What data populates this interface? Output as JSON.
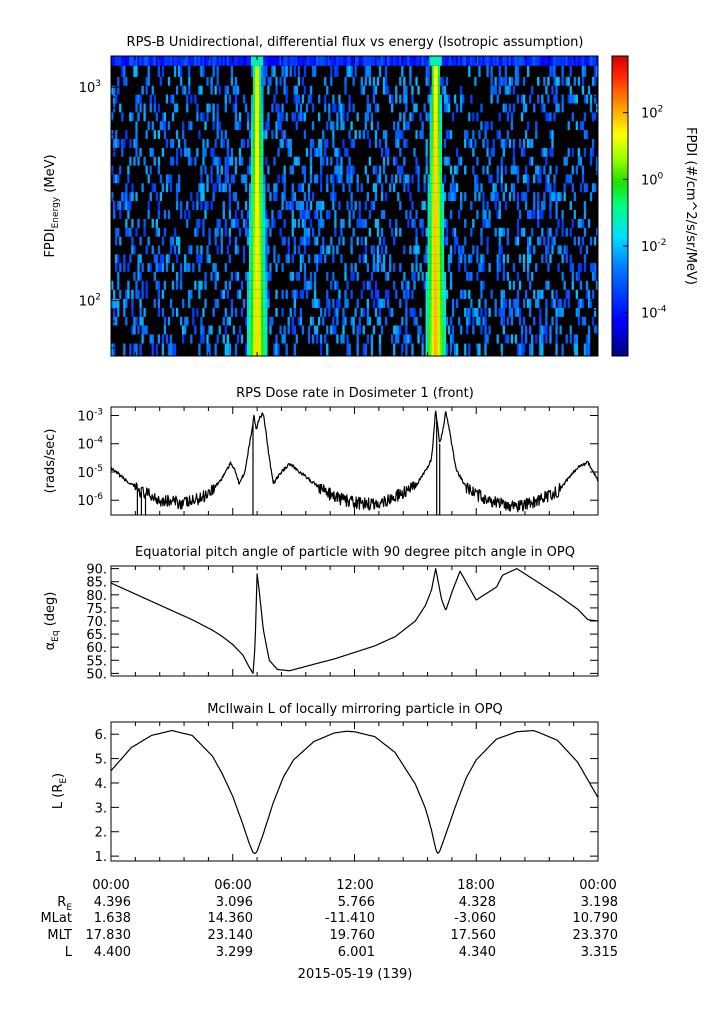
{
  "chart_data": [
    {
      "type": "heatmap",
      "title": "RPS-B  Unidirectional, differential flux vs energy (Isotropic assumption)",
      "ylabel_main": "FPDI",
      "ylabel_sub": "Energy",
      "ylabel_unit": "(MeV)",
      "yscale": "log",
      "ylim": [
        55,
        1400
      ],
      "yticks": [
        {
          "v": 100,
          "m": "10",
          "e": "2"
        },
        {
          "v": 1000,
          "m": "10",
          "e": "3"
        }
      ],
      "xlim_hours": [
        0,
        24
      ],
      "energy_rows": [
        60,
        66,
        73,
        80,
        88,
        97,
        107,
        118,
        130,
        143,
        157,
        173,
        190,
        209,
        230,
        253,
        279,
        307,
        338,
        372,
        409,
        450,
        495,
        545,
        600,
        660,
        726,
        799,
        880,
        968,
        1065,
        1172
      ],
      "peak_bands": [
        {
          "center_hours": 7.2,
          "peak_log_flux": 2.0
        },
        {
          "center_hours": 16.0,
          "peak_log_flux": 2.3
        }
      ],
      "colorbar": {
        "label": "FPDI (#/cm^2/s/sr/MeV)",
        "scale": "log",
        "range_log": [
          -5.3,
          3.7
        ],
        "ticks": [
          {
            "v": 2,
            "m": "10",
            "e": "2"
          },
          {
            "v": 0,
            "m": "10",
            "e": "0"
          },
          {
            "v": -2,
            "m": "10",
            "e": "-2"
          },
          {
            "v": -4,
            "m": "10",
            "e": "-4"
          }
        ]
      }
    },
    {
      "type": "line",
      "title": "RPS  Dose rate in Dosimeter 1 (front)",
      "ylabel": "(rads/sec)",
      "yscale": "log",
      "ylim": [
        3e-07,
        0.002
      ],
      "yticks": [
        {
          "v": 0.001,
          "m": "10",
          "e": "-3"
        },
        {
          "v": 0.0001,
          "m": "10",
          "e": "-4"
        },
        {
          "v": 1e-05,
          "m": "10",
          "e": "-5"
        },
        {
          "v": 1e-06,
          "m": "10",
          "e": "-6"
        }
      ],
      "x_hours": [
        0,
        0.5,
        1,
        1.5,
        2,
        2.5,
        3,
        3.5,
        4,
        4.5,
        5,
        5.4,
        5.7,
        5.9,
        6.1,
        6.3,
        6.6,
        6.9,
        7.05,
        7.15,
        7.3,
        7.5,
        7.6,
        7.8,
        8.0,
        8.4,
        8.8,
        9.3,
        10,
        11,
        12,
        13,
        14,
        15,
        15.5,
        15.8,
        16.0,
        16.2,
        16.35,
        16.5,
        16.7,
        17.0,
        17.5,
        18,
        19,
        20,
        21,
        22,
        23,
        23.5,
        24
      ],
      "y_values": [
        1.3e-05,
        7e-06,
        3.5e-06,
        2e-06,
        1.4e-06,
        1e-06,
        9e-07,
        8e-07,
        9e-07,
        1.3e-06,
        2.5e-06,
        5e-06,
        1.2e-05,
        2e-05,
        1.3e-05,
        4e-06,
        1e-05,
        0.0002,
        0.001,
        0.0003,
        0.0008,
        0.0012,
        0.0004,
        3e-05,
        4e-06,
        1e-05,
        2e-05,
        1e-05,
        4e-06,
        1.3e-06,
        8e-07,
        7e-07,
        1.3e-06,
        3e-06,
        1.1e-05,
        3e-05,
        0.0015,
        0.0001,
        0.0003,
        0.0014,
        0.00025,
        1.2e-05,
        3e-06,
        1.6e-06,
        8e-07,
        6e-07,
        9e-07,
        2e-06,
        1.5e-05,
        2.2e-05,
        5e-06
      ]
    },
    {
      "type": "line",
      "title": "Equatorial pitch angle of particle with 90 degree pitch angle in OPQ",
      "ylabel_main": "α",
      "ylabel_sub": "Eq",
      "ylabel_unit": "(deg)",
      "ylim": [
        49,
        91
      ],
      "yticks": [
        50,
        55,
        60,
        65,
        70,
        75,
        80,
        85,
        90
      ],
      "x_hours": [
        0,
        1,
        2,
        3,
        4,
        5,
        5.5,
        6,
        6.5,
        6.8,
        7.0,
        7.1,
        7.2,
        7.3,
        7.5,
        7.8,
        8.2,
        8.8,
        10,
        11,
        12,
        13,
        14,
        15,
        15.5,
        15.8,
        16.0,
        16.1,
        16.2,
        16.3,
        16.5,
        16.8,
        17.2,
        18,
        19,
        19.3,
        20,
        21,
        22,
        23,
        23.5,
        24
      ],
      "y_values": [
        84.5,
        81,
        77.5,
        74,
        70.5,
        66.5,
        64,
        61,
        57,
        52.5,
        50,
        61,
        88,
        82,
        67,
        55,
        51.5,
        51,
        53.5,
        55.5,
        58,
        60.5,
        64,
        70,
        76,
        82,
        90,
        86,
        82,
        78,
        74,
        81,
        89,
        78,
        83,
        87.5,
        90,
        85,
        80,
        74.5,
        70.5,
        70
      ]
    },
    {
      "type": "line",
      "title": "McIlwain L of locally mirroring particle in OPQ",
      "ylabel_main": "L (R",
      "ylabel_sub": "E",
      "ylabel_unit": ")",
      "ylim": [
        0.8,
        6.5
      ],
      "yticks": [
        1,
        2,
        3,
        4,
        5,
        6
      ],
      "x_hours": [
        0,
        1,
        2,
        3,
        4,
        5,
        5.5,
        6,
        6.5,
        6.8,
        7.0,
        7.1,
        7.2,
        7.5,
        8,
        8.5,
        9,
        10,
        11,
        11.6,
        12,
        13,
        14,
        15,
        15.5,
        15.8,
        16.0,
        16.1,
        16.2,
        16.5,
        17,
        17.5,
        18,
        19,
        20,
        20.8,
        21,
        22,
        23,
        24
      ],
      "y_values": [
        4.5,
        5.45,
        5.95,
        6.15,
        5.95,
        5.1,
        4.35,
        3.45,
        2.3,
        1.55,
        1.15,
        1.1,
        1.2,
        1.9,
        3.2,
        4.25,
        4.95,
        5.7,
        6.05,
        6.12,
        6.1,
        5.9,
        5.25,
        3.95,
        2.95,
        2.05,
        1.3,
        1.1,
        1.2,
        1.9,
        3.1,
        4.2,
        4.95,
        5.8,
        6.1,
        6.15,
        6.1,
        5.75,
        4.85,
        3.4
      ]
    }
  ],
  "x_axis": {
    "tick_labels": [
      "00:00",
      "06:00",
      "12:00",
      "18:00",
      "00:00"
    ],
    "tick_hours": [
      0,
      6,
      12,
      18,
      24
    ],
    "minor_step_hours": 1.2,
    "date_label": "2015-05-19 (139)",
    "ephemeris": [
      {
        "label_main": "R",
        "label_sub": "E",
        "values": [
          "4.396",
          "3.096",
          "5.766",
          "4.328",
          "3.198"
        ]
      },
      {
        "label_main": "MLat",
        "label_sub": "",
        "values": [
          "1.638",
          "14.360",
          "-11.410",
          "-3.060",
          "10.790"
        ]
      },
      {
        "label_main": "MLT",
        "label_sub": "",
        "values": [
          "17.830",
          "23.140",
          "19.760",
          "17.560",
          "23.370"
        ]
      },
      {
        "label_main": "L",
        "label_sub": "",
        "values": [
          "4.400",
          "3.299",
          "6.001",
          "4.340",
          "3.315"
        ]
      }
    ]
  },
  "colors": {
    "line": "#000000",
    "background": "#ffffff",
    "heatmap_empty": "#000000"
  }
}
